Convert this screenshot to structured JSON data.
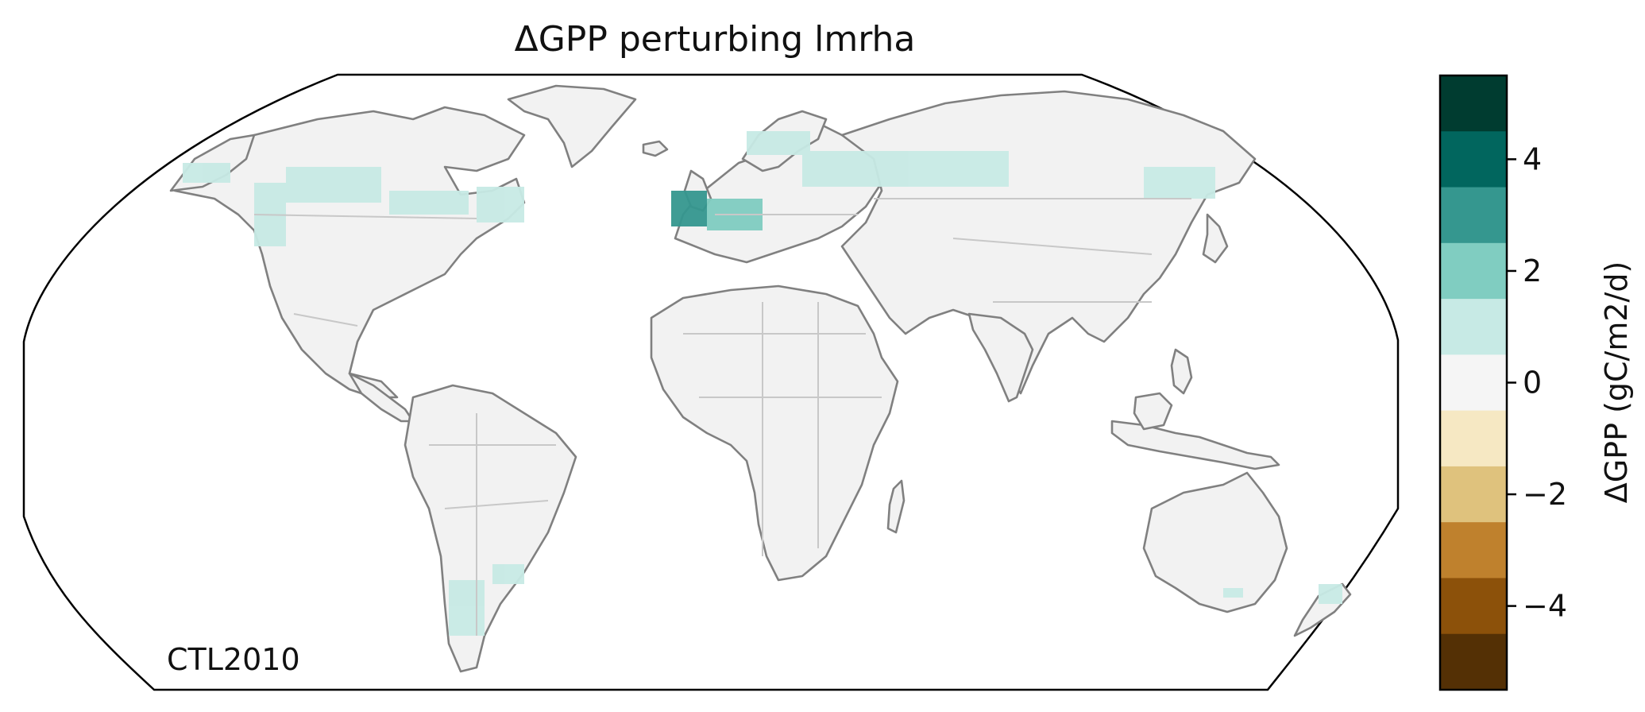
{
  "title": "ΔGPP perturbing lmrha",
  "panel_label": "CTL2010",
  "colorbar": {
    "label": "ΔGPP (gC/m2/d)",
    "bins": [
      {
        "from": -4.5,
        "to": -3.5,
        "color": "#543005"
      },
      {
        "from": -3.5,
        "to": -2.5,
        "color": "#8c510a"
      },
      {
        "from": -2.5,
        "to": -1.5,
        "color": "#bf812d"
      },
      {
        "from": -1.5,
        "to": -0.5,
        "color": "#dfc27d"
      },
      {
        "from": -0.5,
        "to": 0.5,
        "color": "#f6e8c3"
      },
      {
        "from": 0.5,
        "to": 1.5,
        "color": "#f5f5f5"
      },
      {
        "from": 1.5,
        "to": 2.5,
        "color": "#c7eae5"
      },
      {
        "from": 2.5,
        "to": 3.5,
        "color": "#80cdc1"
      },
      {
        "from": 3.5,
        "to": 4.5,
        "color": "#35978f"
      }
    ],
    "ticks": [
      {
        "value": 4,
        "label": "4"
      },
      {
        "value": 2,
        "label": "2"
      },
      {
        "value": 0,
        "label": "0"
      },
      {
        "value": -2,
        "label": "−2"
      },
      {
        "value": -4,
        "label": "−4"
      }
    ]
  },
  "map": {
    "projection": "Robinson",
    "land_color": "#f2f2f2",
    "coastline_color": "#808080",
    "border_color": "#c8c8c8",
    "ocean_color": "#ffffff",
    "anomaly_regions": [
      {
        "name": "western-north-america",
        "color": "#c7eae5"
      },
      {
        "name": "canada",
        "color": "#c7eae5"
      },
      {
        "name": "northeast-us",
        "color": "#c7eae5"
      },
      {
        "name": "western-europe",
        "color": "#35978f"
      },
      {
        "name": "central-europe",
        "color": "#80cdc1"
      },
      {
        "name": "scandinavia",
        "color": "#c7eae5"
      },
      {
        "name": "russia",
        "color": "#c7eae5"
      },
      {
        "name": "east-asia",
        "color": "#c7eae5"
      },
      {
        "name": "southern-south-america",
        "color": "#c7eae5"
      },
      {
        "name": "new-zealand",
        "color": "#c7eae5"
      }
    ]
  }
}
